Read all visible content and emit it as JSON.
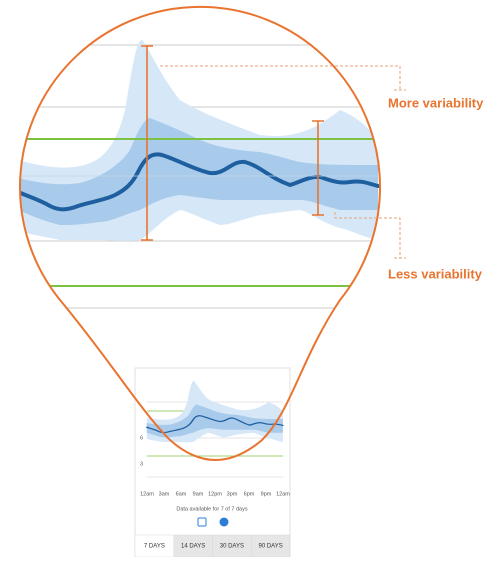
{
  "annotations": {
    "more": "More variability",
    "less": "Less variability"
  },
  "mini_chart": {
    "y_labels": [
      "6",
      "3"
    ],
    "x_labels": [
      "12am",
      "3am",
      "6am",
      "9am",
      "12pm",
      "3pm",
      "6pm",
      "9pm",
      "12am"
    ],
    "caption": "Data available for 7 of 7 days"
  },
  "tabs": [
    "7 DAYS",
    "14 DAYS",
    "30 DAYS",
    "90 DAYS"
  ]
}
